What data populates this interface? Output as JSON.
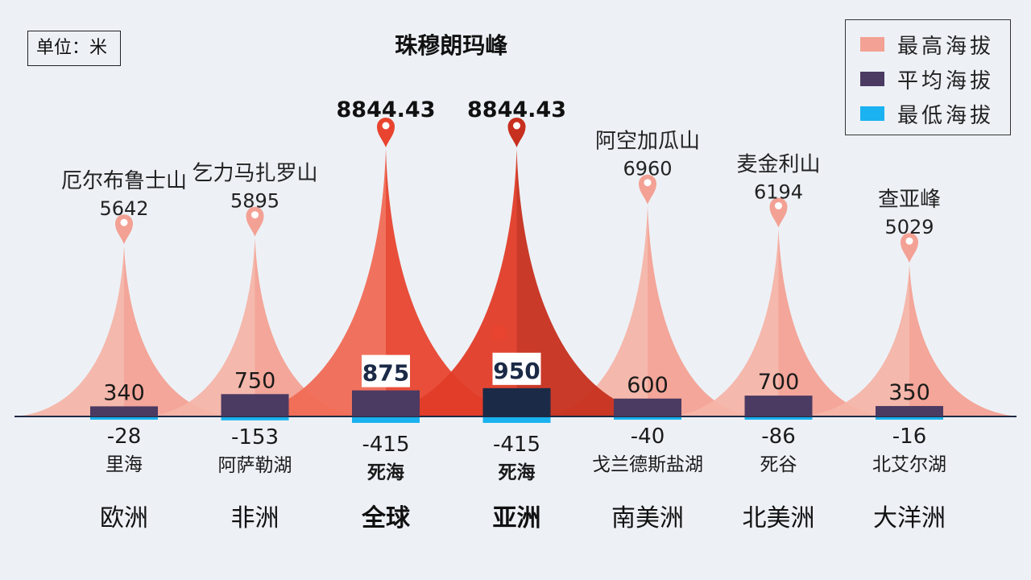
{
  "unit_label": "单位：米",
  "colors": {
    "max": "#f3a194",
    "max_highlight": "#e8442f",
    "max_highlight_deep": "#c72f1e",
    "avg": "#4b3a62",
    "avg_highlight": "#1b2a46",
    "min": "#1ab2f0",
    "axis": "#1d2a44",
    "background": "#edf1f6"
  },
  "chart_data": {
    "type": "bar",
    "legend": [
      {
        "name": "最高海拔",
        "color_key": "max"
      },
      {
        "name": "平均海拔",
        "color_key": "avg"
      },
      {
        "name": "最低海拔",
        "color_key": "min"
      }
    ],
    "legend_position": "top-right",
    "global_peak_label": "珠穆朗玛峰",
    "categories": [
      {
        "region": "欧洲",
        "peak": "厄尔布鲁士山",
        "max": 5642,
        "avg": 340,
        "min": -28,
        "low_place": "里海",
        "highlight": false
      },
      {
        "region": "非洲",
        "peak": "乞力马扎罗山",
        "max": 5895,
        "avg": 750,
        "min": -153,
        "low_place": "阿萨勒湖",
        "highlight": false
      },
      {
        "region": "全球",
        "peak": "",
        "max": 8844.43,
        "avg": 875,
        "min": -415,
        "low_place": "死海",
        "highlight": true
      },
      {
        "region": "亚洲",
        "peak": "",
        "max": 8844.43,
        "avg": 950,
        "min": -415,
        "low_place": "死海",
        "highlight": true
      },
      {
        "region": "南美洲",
        "peak": "阿空加瓜山",
        "max": 6960,
        "avg": 600,
        "min": -40,
        "low_place": "戈兰德斯盐湖",
        "highlight": false
      },
      {
        "region": "北美洲",
        "peak": "麦金利山",
        "max": 6194,
        "avg": 700,
        "min": -86,
        "low_place": "死谷",
        "highlight": false
      },
      {
        "region": "大洋洲",
        "peak": "查亚峰",
        "max": 5029,
        "avg": 350,
        "min": -16,
        "low_place": "北艾尔湖",
        "highlight": false
      }
    ]
  }
}
